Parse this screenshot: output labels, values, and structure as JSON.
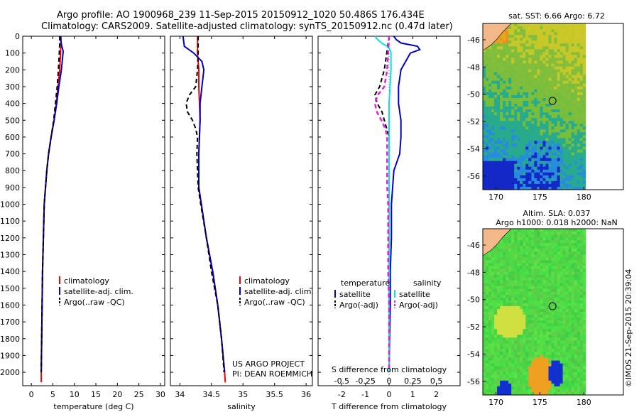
{
  "header": {
    "line1": "Argo profile: AO 1900968_239 11-Sep-2015 20150912_1020 50.486S 176.434E",
    "line2": "Climatology: CARS2009. Satellite-adjusted climatology: synTS_20150912.nc (0.47d later)"
  },
  "colors": {
    "climatology": "#ff0000",
    "satellite": "#0000cc",
    "argo": "#000000",
    "satellite_salinity": "#00e5e5",
    "argo_salinity": "#e020e0",
    "land": "#f4b98b"
  },
  "chart_data": [
    {
      "type": "line",
      "panel": "temperature",
      "xlabel": "temperature (deg C)",
      "xticks": [
        "0",
        "5",
        "10",
        "15",
        "20",
        "25",
        "30"
      ],
      "xlim": [
        -2,
        31
      ],
      "ylim": [
        2080,
        0
      ],
      "yticks": [
        "0",
        "100",
        "200",
        "300",
        "400",
        "500",
        "600",
        "700",
        "800",
        "900",
        "1000",
        "1100",
        "1200",
        "1300",
        "1400",
        "1500",
        "1600",
        "1700",
        "1800",
        "1900",
        "2000"
      ],
      "legend": [
        "climatology",
        "satellite-adj. clim.",
        "Argo(..raw -QC)"
      ],
      "series": [
        {
          "name": "climatology",
          "depth": [
            0,
            100,
            200,
            300,
            400,
            500,
            600,
            700,
            800,
            900,
            1000,
            1200,
            1400,
            1600,
            1800,
            2000,
            2060
          ],
          "values": [
            6.9,
            6.8,
            6.6,
            6.2,
            5.8,
            5.3,
            4.6,
            4.0,
            3.6,
            3.3,
            3.0,
            2.8,
            2.6,
            2.5,
            2.4,
            2.3,
            2.3
          ]
        },
        {
          "name": "satellite-adj. clim.",
          "depth": [
            0,
            50,
            90,
            200,
            300,
            400,
            500,
            600,
            700,
            800,
            900,
            1000,
            1200,
            1400,
            1600,
            1800,
            2000
          ],
          "values": [
            6.8,
            7.0,
            7.4,
            7.0,
            6.4,
            5.9,
            5.3,
            4.6,
            4.0,
            3.6,
            3.3,
            3.0,
            2.8,
            2.6,
            2.5,
            2.4,
            2.3
          ]
        },
        {
          "name": "Argo(..raw -QC)",
          "depth": [
            0,
            50,
            100,
            200,
            300,
            400,
            500,
            600,
            700,
            800,
            900,
            1000,
            1200,
            1400,
            1600,
            1800,
            2000
          ],
          "values": [
            6.6,
            6.6,
            6.5,
            6.3,
            6.0,
            5.6,
            5.2,
            4.6,
            4.0,
            3.6,
            3.3,
            3.0,
            2.8,
            2.6,
            2.5,
            2.4,
            2.3
          ]
        }
      ]
    },
    {
      "type": "line",
      "panel": "salinity",
      "xlabel": "salinity",
      "xticks": [
        "34",
        "34.5",
        "35",
        "35.5",
        "36"
      ],
      "xlim": [
        33.85,
        36.1
      ],
      "ylim": [
        2080,
        0
      ],
      "legend": [
        "climatology",
        "satellite-adj. clim.",
        "Argo(..raw -QC)"
      ],
      "annotation": [
        "US ARGO PROJECT",
        "PI: DEAN ROEMMICH"
      ],
      "series": [
        {
          "name": "climatology",
          "depth": [
            0,
            100,
            200,
            300,
            400,
            500,
            600,
            700,
            800,
            900,
            1000,
            1200,
            1400,
            1600,
            1800,
            2000,
            2060
          ],
          "values": [
            34.28,
            34.28,
            34.3,
            34.3,
            34.31,
            34.32,
            34.31,
            34.3,
            34.3,
            34.3,
            34.34,
            34.42,
            34.52,
            34.6,
            34.66,
            34.71,
            34.72
          ]
        },
        {
          "name": "satellite-adj. clim.",
          "depth": [
            0,
            30,
            60,
            100,
            150,
            200,
            300,
            400,
            500,
            600,
            700,
            800,
            900,
            1000,
            1200,
            1400,
            1600,
            1800,
            2000
          ],
          "values": [
            34.05,
            34.06,
            34.07,
            34.22,
            34.35,
            34.38,
            34.35,
            34.32,
            34.32,
            34.31,
            34.3,
            34.3,
            34.3,
            34.34,
            34.42,
            34.52,
            34.6,
            34.66,
            34.71
          ]
        },
        {
          "name": "Argo(..raw -QC)",
          "depth": [
            0,
            100,
            200,
            300,
            350,
            400,
            450,
            500,
            550,
            600,
            700,
            800,
            900,
            1000,
            1200,
            1400,
            1600,
            1800,
            2000
          ],
          "values": [
            34.29,
            34.29,
            34.28,
            34.25,
            34.15,
            34.1,
            34.12,
            34.2,
            34.25,
            34.28,
            34.27,
            34.28,
            34.29,
            34.33,
            34.42,
            34.5,
            34.6,
            34.66,
            34.7
          ]
        }
      ]
    },
    {
      "type": "line",
      "panel": "difference",
      "xlabel": "T difference from climatology",
      "x2label": "S difference from climatology",
      "xticks": [
        "-2",
        "-1",
        "0",
        "1",
        "2"
      ],
      "x2ticks": [
        "-0.5",
        "-0.25",
        "0",
        "0.25",
        "0.5"
      ],
      "xlim": [
        -3,
        3
      ],
      "ylim": [
        2080,
        0
      ],
      "legend_headers": [
        "temperature",
        "salinity"
      ],
      "legend": [
        "satellite",
        "Argo(-adj)",
        "satellite",
        "Argo(-adj)"
      ],
      "series": [
        {
          "name": "temperature satellite",
          "depth": [
            0,
            20,
            40,
            60,
            80,
            100,
            200,
            300,
            400,
            500,
            600,
            700,
            800,
            900,
            1000,
            1200,
            1400,
            1600,
            1800,
            2000
          ],
          "values": [
            0.2,
            0.3,
            0.5,
            1.2,
            1.3,
            0.9,
            0.5,
            0.4,
            0.4,
            0.5,
            0.5,
            0.45,
            0.2,
            0.15,
            0.1,
            0.1,
            0.05,
            0.05,
            0.02,
            0.0
          ]
        },
        {
          "name": "temperature Argo(-adj)",
          "depth": [
            0,
            100,
            200,
            300,
            350,
            400,
            450,
            500,
            550,
            600,
            700,
            800,
            900,
            1000,
            1200,
            1400,
            1600,
            1800,
            2000
          ],
          "values": [
            0.0,
            -0.1,
            -0.2,
            -0.4,
            -0.6,
            -0.5,
            -0.3,
            -0.2,
            -0.1,
            0.0,
            0.0,
            0.0,
            0.0,
            0.0,
            0.0,
            0.0,
            0.0,
            0.0,
            0.0
          ]
        },
        {
          "name": "salinity satellite",
          "depth": [
            0,
            20,
            40,
            60,
            80,
            100,
            200,
            300,
            400,
            500,
            600,
            700,
            800,
            900,
            1000,
            1200,
            1400,
            1600,
            1800,
            2000
          ],
          "values": [
            -0.15,
            -0.12,
            -0.08,
            -0.02,
            0.01,
            0.02,
            0.02,
            0.01,
            0.0,
            0.0,
            0.0,
            0.0,
            0.0,
            0.0,
            0.0,
            0.0,
            0.0,
            0.0,
            0.0,
            0.0
          ]
        },
        {
          "name": "salinity Argo(-adj)",
          "depth": [
            0,
            100,
            200,
            300,
            350,
            400,
            450,
            500,
            550,
            600,
            700,
            800,
            900,
            1000,
            1200,
            1400,
            1600,
            1800,
            2000
          ],
          "values": [
            0.0,
            -0.01,
            -0.02,
            -0.05,
            -0.12,
            -0.15,
            -0.13,
            -0.08,
            -0.04,
            -0.02,
            -0.02,
            -0.02,
            -0.02,
            -0.01,
            -0.01,
            -0.01,
            0.0,
            0.0,
            0.0
          ]
        }
      ]
    },
    {
      "type": "heatmap",
      "panel": "sst-map",
      "title": "sat. SST: 6.66 Argo: 6.72",
      "xticks": [
        "170",
        "175",
        "180"
      ],
      "yticks": [
        "-46",
        "-48",
        "-50",
        "-52",
        "-54",
        "-56"
      ],
      "xlim": [
        168.5,
        184.5
      ],
      "ylim": [
        -57,
        -44.8
      ]
    },
    {
      "type": "heatmap",
      "panel": "sla-map",
      "title": "Altim. SLA: 0.037",
      "subtitle": "Argo h1000: 0.018 h2000: NaN",
      "xticks": [
        "170",
        "175",
        "180"
      ],
      "yticks": [
        "-46",
        "-48",
        "-50",
        "-52",
        "-54",
        "-56"
      ],
      "xlim": [
        168.5,
        184.5
      ],
      "ylim": [
        -57,
        -44.8
      ]
    }
  ],
  "credit": "©IMOS 21-Sep-2015 20:39:04"
}
